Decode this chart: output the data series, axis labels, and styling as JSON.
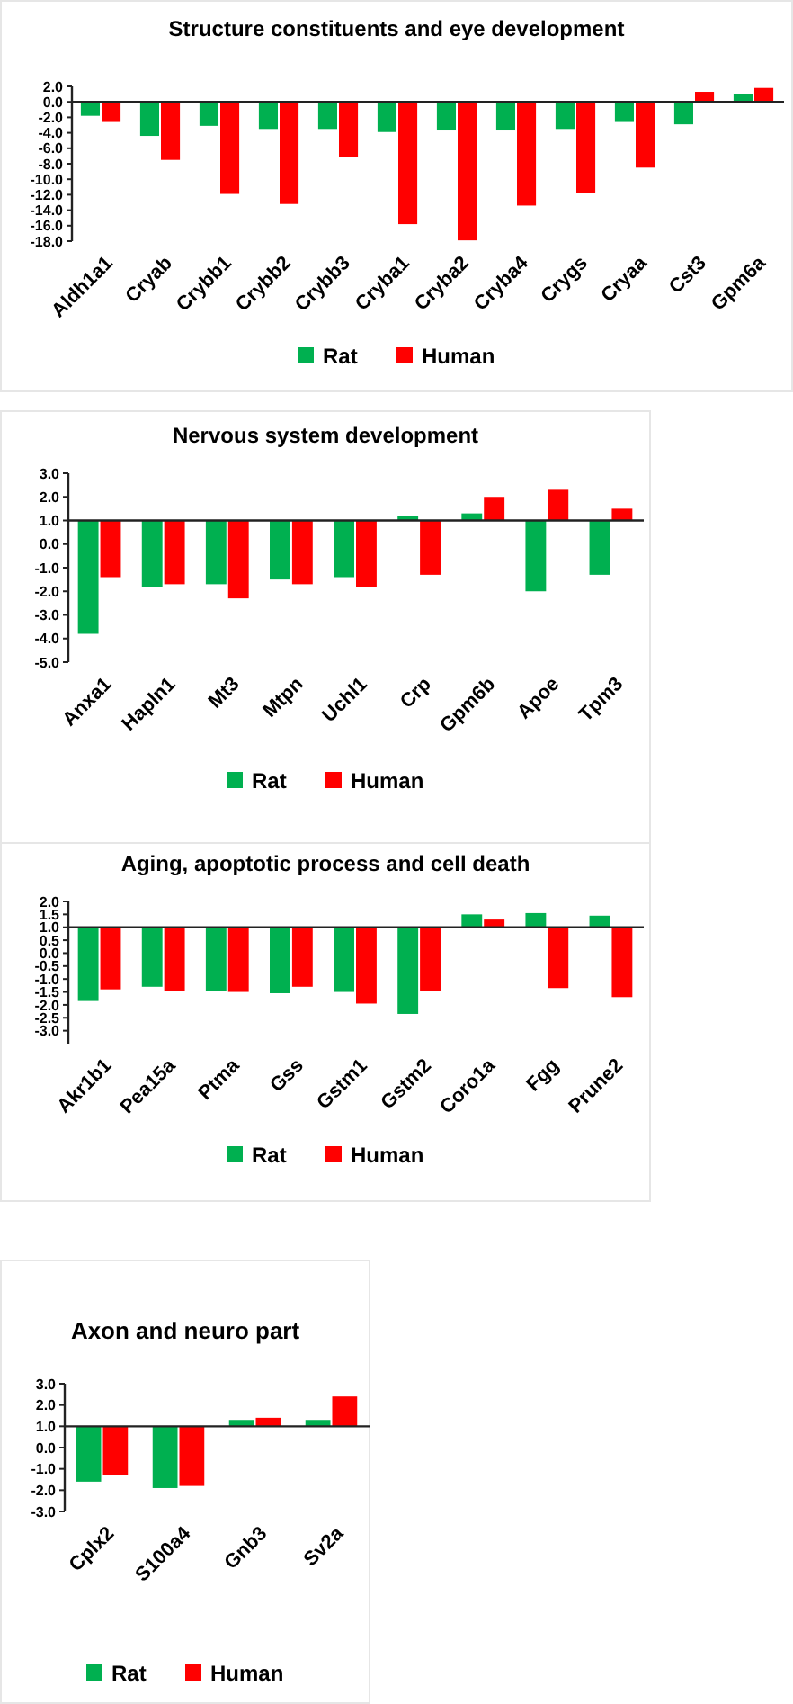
{
  "chart_data": [
    {
      "type": "bar",
      "title": "Structure constituents and eye development",
      "categories": [
        "Aldh1a1",
        "Cryab",
        "Crybb1",
        "Crybb2",
        "Crybb3",
        "Cryba1",
        "Cryba2",
        "Cryba4",
        "Crygs",
        "Cryaa",
        "Cst3",
        "Gpm6a"
      ],
      "series": [
        {
          "name": "Rat",
          "color": "#00b050",
          "values": [
            -1.8,
            -4.4,
            -3.1,
            -3.5,
            -3.5,
            -3.9,
            -3.7,
            -3.7,
            -3.5,
            -2.6,
            -2.9,
            1.0
          ]
        },
        {
          "name": "Human",
          "color": "#ff0000",
          "values": [
            -2.6,
            -7.5,
            -11.9,
            -13.2,
            -7.1,
            -15.8,
            -17.9,
            -13.4,
            -11.8,
            -8.5,
            1.3,
            1.8
          ]
        }
      ],
      "ylim": [
        -18,
        2
      ],
      "yticks": [
        {
          "value": 2,
          "label": "2.0"
        },
        {
          "value": 0,
          "label": "0.0"
        },
        {
          "value": -2,
          "label": "-2.0"
        },
        {
          "value": -4,
          "label": "-4.0"
        },
        {
          "value": -6,
          "label": "-6.0"
        },
        {
          "value": -8,
          "label": "-8.0"
        },
        {
          "value": -10,
          "label": "-10.0"
        },
        {
          "value": -12,
          "label": "-12.0"
        },
        {
          "value": -14,
          "label": "-14.0"
        },
        {
          "value": -16,
          "label": "-16.0"
        },
        {
          "value": -18,
          "label": "-18.0"
        }
      ],
      "legend": "bottom"
    },
    {
      "type": "bar",
      "title": "Nervous system development",
      "categories": [
        "Anxa1",
        "Hapln1",
        "Mt3",
        "Mtpn",
        "Uchl1",
        "Crp",
        "Gpm6b",
        "Apoe",
        "Tpm3"
      ],
      "series": [
        {
          "name": "Rat",
          "color": "#00b050",
          "base": [
            1,
            1,
            1,
            1,
            1,
            1,
            1,
            1,
            1
          ],
          "values": [
            -4.8,
            -2.8,
            -2.7,
            -2.5,
            -2.4,
            0.2,
            0.3,
            -3.0,
            -2.3
          ]
        },
        {
          "name": "Human",
          "color": "#ff0000",
          "base": [
            1,
            1,
            1,
            1,
            1,
            1,
            1,
            1,
            1
          ],
          "values": [
            -2.4,
            -2.7,
            -3.3,
            -2.7,
            -2.8,
            -2.3,
            1.0,
            1.3,
            0.5
          ]
        }
      ],
      "ylim": [
        -5,
        3
      ],
      "yticks": [
        {
          "value": 3,
          "label": "3.0"
        },
        {
          "value": 2,
          "label": "2.0"
        },
        {
          "value": 1,
          "label": "1.0"
        },
        {
          "value": 0,
          "label": "0.0"
        },
        {
          "value": -1,
          "label": "-1.0"
        },
        {
          "value": -2,
          "label": "-2.0"
        },
        {
          "value": -3,
          "label": "-3.0"
        },
        {
          "value": -4,
          "label": "-4.0"
        },
        {
          "value": -5,
          "label": "-5.0"
        }
      ],
      "legend": "bottom"
    },
    {
      "type": "bar",
      "title": "Aging, apoptotic process and cell death",
      "categories": [
        "Akr1b1",
        "Pea15a",
        "Ptma",
        "Gss",
        "Gstm1",
        "Gstm2",
        "Coro1a",
        "Fgg",
        "Prune2"
      ],
      "series": [
        {
          "name": "Rat",
          "color": "#00b050",
          "base": [
            1,
            1,
            1,
            1,
            1,
            1,
            1,
            1,
            1
          ],
          "values": [
            -2.85,
            -2.3,
            -2.45,
            -2.55,
            -2.5,
            -3.35,
            0.5,
            0.55,
            0.45
          ]
        },
        {
          "name": "Human",
          "color": "#ff0000",
          "base": [
            1,
            1,
            1,
            1,
            1,
            1,
            1,
            1,
            1
          ],
          "values": [
            -2.4,
            -2.45,
            -2.5,
            -2.3,
            -2.95,
            -2.45,
            0.3,
            -2.35,
            -2.7
          ]
        }
      ],
      "ylim": [
        -3.5,
        2
      ],
      "yticks": [
        {
          "value": 2,
          "label": "2.0"
        },
        1.5,
        {
          "value": 1,
          "label": "1.0"
        },
        0.5,
        {
          "value": 0,
          "label": "0.0"
        },
        -0.5,
        {
          "value": -1,
          "label": "-1.0"
        },
        -1.5,
        {
          "value": -2,
          "label": "-2.0"
        },
        -2.5,
        {
          "value": -3,
          "label": "-3.0"
        }
      ],
      "legend": "bottom"
    },
    {
      "type": "bar",
      "title": "Axon and neuro part",
      "categories": [
        "Cplx2",
        "S100a4",
        "Gnb3",
        "Sv2a"
      ],
      "series": [
        {
          "name": "Rat",
          "color": "#00b050",
          "base": [
            1,
            1,
            1,
            1
          ],
          "values": [
            -2.6,
            -2.9,
            0.3,
            0.3
          ]
        },
        {
          "name": "Human",
          "color": "#ff0000",
          "base": [
            1,
            1,
            1,
            1
          ],
          "values": [
            -2.3,
            -2.8,
            0.4,
            1.4
          ]
        }
      ],
      "ylim": [
        -3,
        3
      ],
      "yticks": [
        {
          "value": 3,
          "label": "3.0"
        },
        {
          "value": 2,
          "label": "2.0"
        },
        {
          "value": 1,
          "label": "1.0"
        },
        {
          "value": 0,
          "label": "0.0"
        },
        {
          "value": -1,
          "label": "-1.0"
        },
        {
          "value": -2,
          "label": "-2.0"
        },
        {
          "value": -3,
          "label": "-3.0"
        }
      ],
      "legend": "bottom"
    }
  ]
}
